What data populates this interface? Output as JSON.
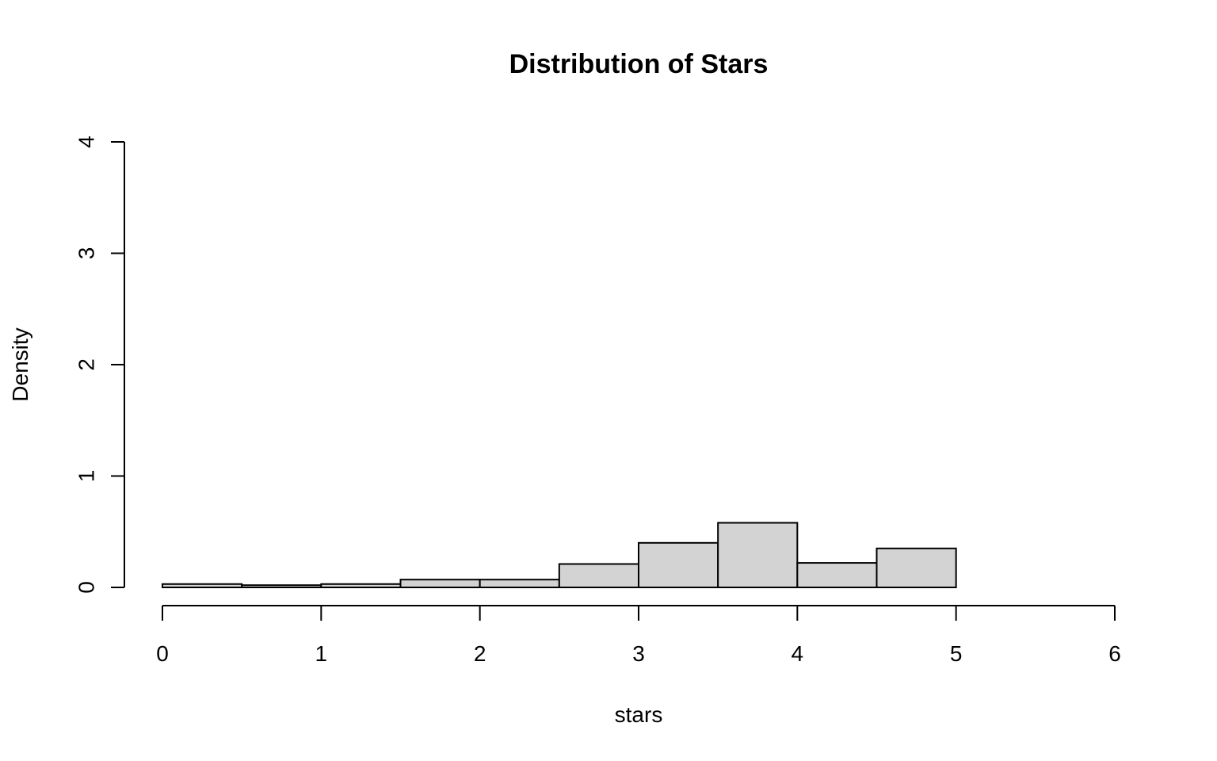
{
  "chart_data": {
    "type": "bar",
    "title": "Distribution of Stars",
    "xlabel": "stars",
    "ylabel": "Density",
    "xlim": [
      0,
      6
    ],
    "ylim": [
      0,
      4
    ],
    "x_ticks": [
      0,
      1,
      2,
      3,
      4,
      5,
      6
    ],
    "y_ticks": [
      0,
      1,
      2,
      3,
      4
    ],
    "bins": [
      {
        "start": 0.0,
        "end": 0.5,
        "density": 0.03
      },
      {
        "start": 0.5,
        "end": 1.0,
        "density": 0.02
      },
      {
        "start": 1.0,
        "end": 1.5,
        "density": 0.03
      },
      {
        "start": 1.5,
        "end": 2.0,
        "density": 0.07
      },
      {
        "start": 2.0,
        "end": 2.5,
        "density": 0.07
      },
      {
        "start": 2.5,
        "end": 3.0,
        "density": 0.21
      },
      {
        "start": 3.0,
        "end": 3.5,
        "density": 0.4
      },
      {
        "start": 3.5,
        "end": 4.0,
        "density": 0.58
      },
      {
        "start": 4.0,
        "end": 4.5,
        "density": 0.22
      },
      {
        "start": 4.5,
        "end": 5.0,
        "density": 0.35
      }
    ],
    "bar_fill": "#d3d3d3",
    "bar_stroke": "#000000",
    "grid": false,
    "legend": "none"
  }
}
